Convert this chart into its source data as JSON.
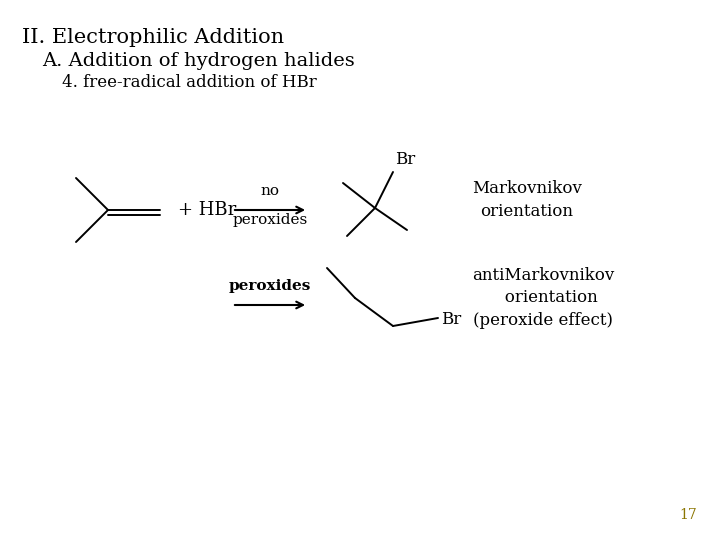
{
  "title1": "II. Electrophilic Addition",
  "title2": "A. Addition of hydrogen halides",
  "title3": "4. free-radical addition of HBr",
  "label_markovnikov": "Markovnikov\norientation",
  "label_anti": "antiMarkovnikov\n   orientation\n(peroxide effect)",
  "label_no_peroxides": "no\nperoxides",
  "label_peroxides": "peroxides",
  "label_plus_HBr": "+ HBr",
  "label_Br1": "Br",
  "label_Br2": "Br",
  "page_number": "17",
  "bg_color": "#ffffff",
  "text_color": "#000000",
  "title1_fontsize": 15,
  "title2_fontsize": 14,
  "title3_fontsize": 12,
  "body_fontsize": 12,
  "small_fontsize": 10,
  "arrow_label_fontsize": 11
}
